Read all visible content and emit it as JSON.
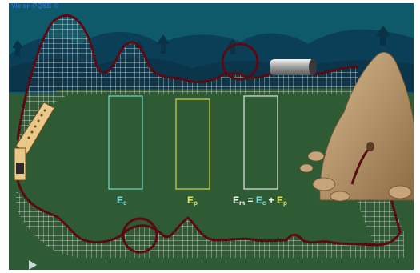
{
  "header": {
    "credit": "Vie en PQSB ©"
  },
  "colors": {
    "sky": "#0f5a6a",
    "hills": "#0b3f57",
    "ground": "#2e5a34",
    "track": "#5a0a12",
    "mesh": "#ffffff",
    "ec_box": "#6fd9d0",
    "ep_box": "#d6d646",
    "em_box": "#e6e6e6",
    "ec_text": "#6fe0e8",
    "ep_text": "#e8e84a",
    "em_text": "#ffffff"
  },
  "energy": {
    "ec": {
      "symbol": "E",
      "subscript": "c",
      "level": 0
    },
    "ep": {
      "symbol": "E",
      "subscript": "p",
      "level": 0
    },
    "em": {
      "symbol": "E",
      "subscript": "m",
      "level": 0
    },
    "equals": "=",
    "plus": "+"
  },
  "controls": {
    "play_icon": "play-triangle-icon"
  }
}
